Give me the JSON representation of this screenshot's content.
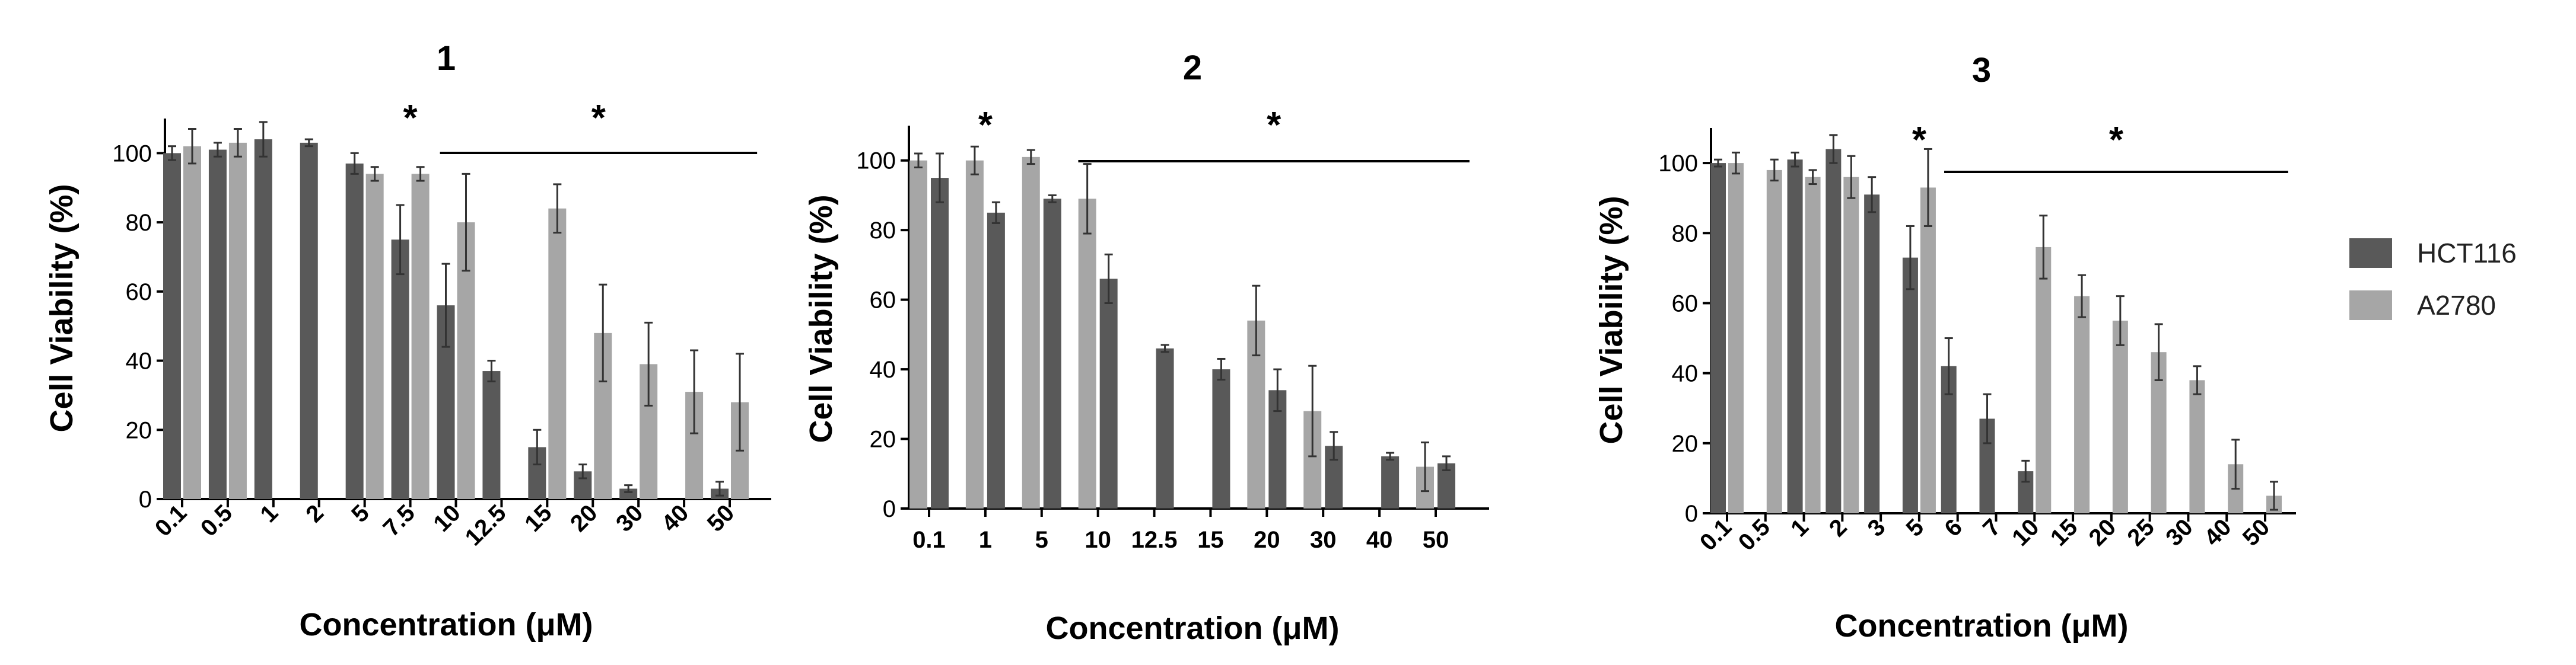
{
  "chart_data": [
    {
      "type": "bar",
      "title": "1",
      "xlabel": "Concentration (μM)",
      "ylabel": "Cell Viability (%)",
      "ylim": [
        0,
        110
      ],
      "yticks": [
        0,
        20,
        40,
        60,
        80,
        100
      ],
      "categories": [
        "0.1",
        "0.5",
        "1",
        "2",
        "5",
        "7.5",
        "10",
        "12.5",
        "15",
        "20",
        "30",
        "40",
        "50"
      ],
      "series": [
        {
          "name": "HCT116",
          "values": [
            100,
            101,
            104,
            103,
            97,
            75,
            56,
            37,
            15,
            8,
            3,
            null,
            3
          ],
          "errors": [
            2,
            2,
            5,
            1,
            3,
            10,
            12,
            3,
            5,
            2,
            1,
            null,
            2
          ]
        },
        {
          "name": "A2780",
          "values": [
            102,
            103,
            null,
            null,
            94,
            94,
            80,
            null,
            84,
            48,
            39,
            31,
            28
          ],
          "errors": [
            5,
            4,
            null,
            null,
            2,
            2,
            14,
            null,
            7,
            14,
            12,
            12,
            14
          ]
        }
      ],
      "significance": [
        {
          "label": "*",
          "from": "7.5",
          "to": "7.5",
          "line": false
        },
        {
          "label": "*",
          "from": "10",
          "to": "50",
          "line": true
        }
      ]
    },
    {
      "type": "bar",
      "title": "2",
      "xlabel": "Concentration (μM)",
      "ylabel": "Cell Viability (%)",
      "ylim": [
        0,
        110
      ],
      "yticks": [
        0,
        20,
        40,
        60,
        80,
        100
      ],
      "categories": [
        "0.1",
        "1",
        "5",
        "10",
        "12.5",
        "15",
        "20",
        "30",
        "40",
        "50"
      ],
      "series": [
        {
          "name": "A2780",
          "values": [
            100,
            100,
            101,
            89,
            null,
            null,
            54,
            28,
            null,
            12
          ],
          "errors": [
            2,
            4,
            2,
            10,
            null,
            null,
            10,
            13,
            null,
            7
          ]
        },
        {
          "name": "HCT116",
          "values": [
            95,
            85,
            89,
            66,
            46,
            40,
            34,
            18,
            15,
            13
          ],
          "errors": [
            7,
            3,
            1,
            7,
            1,
            3,
            6,
            4,
            1,
            2
          ]
        }
      ],
      "significance": [
        {
          "label": "*",
          "from": "1",
          "to": "1",
          "line": false
        },
        {
          "label": "*",
          "from": "10",
          "to": "50",
          "line": true
        }
      ]
    },
    {
      "type": "bar",
      "title": "3",
      "xlabel": "Concentration (μM)",
      "ylabel": "Cell Viability (%)",
      "ylim": [
        0,
        110
      ],
      "yticks": [
        0,
        20,
        40,
        60,
        80,
        100
      ],
      "categories": [
        "0.1",
        "0.5",
        "1",
        "2",
        "3",
        "5",
        "6",
        "7",
        "10",
        "15",
        "20",
        "25",
        "30",
        "40",
        "50"
      ],
      "series": [
        {
          "name": "HCT116",
          "values": [
            100,
            null,
            101,
            104,
            91,
            73,
            42,
            27,
            12,
            null,
            null,
            null,
            null,
            null,
            null
          ],
          "errors": [
            1,
            null,
            2,
            4,
            5,
            9,
            8,
            7,
            3,
            null,
            null,
            null,
            null,
            null,
            null
          ]
        },
        {
          "name": "A2780",
          "values": [
            100,
            98,
            96,
            96,
            null,
            93,
            null,
            null,
            76,
            62,
            55,
            46,
            38,
            14,
            5
          ],
          "errors": [
            3,
            3,
            2,
            6,
            null,
            11,
            null,
            null,
            9,
            6,
            7,
            8,
            4,
            7,
            4
          ]
        }
      ],
      "significance": [
        {
          "label": "*",
          "from": "5",
          "to": "5",
          "line": false
        },
        {
          "label": "*",
          "from": "6",
          "to": "50",
          "line": true
        }
      ]
    }
  ],
  "legend": {
    "items": [
      {
        "label": "HCT116",
        "color": "#595959"
      },
      {
        "label": "A2780",
        "color": "#a6a6a6"
      }
    ]
  },
  "colors": {
    "HCT116": "#595959",
    "A2780": "#a6a6a6",
    "error_bar": "#333333",
    "axis": "#000000"
  }
}
